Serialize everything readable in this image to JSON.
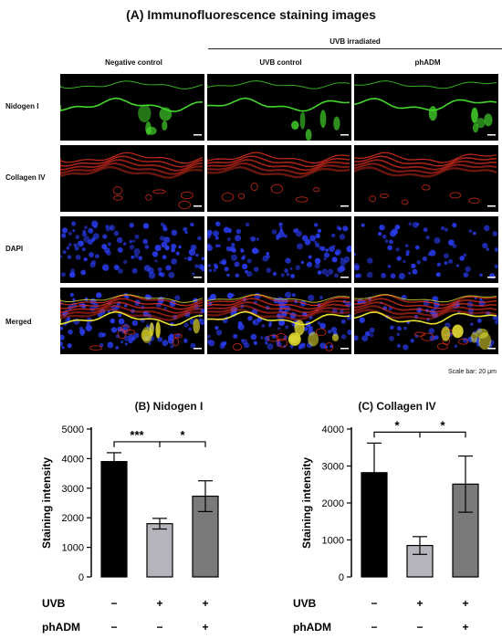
{
  "figure": {
    "title": "(A) Immunofluorescence staining images",
    "group_label": "UVB irradiated",
    "columns": [
      "Negative control",
      "UVB control",
      "phADM"
    ],
    "rows": [
      {
        "label": "Nidogen I",
        "stain": "green"
      },
      {
        "label": "Collagen IV",
        "stain": "red"
      },
      {
        "label": "DAPI",
        "stain": "blue"
      },
      {
        "label": "Merged",
        "stain": "merged"
      }
    ],
    "scale_bar": "Scale bar: 20 μm",
    "colors": {
      "green": "#44d62c",
      "red": "#e83020",
      "blue": "#2a3cf0",
      "yellow": "#e8e030",
      "bar_dark": "#000000",
      "bar_light": "#b4b4bc",
      "bar_mid": "#7a7a7a"
    }
  },
  "chart_data": [
    {
      "type": "bar",
      "title": "(B) Nidogen I",
      "categories": [
        "Negative control",
        "UVB control",
        "phADM"
      ],
      "values": [
        3900,
        1800,
        2730
      ],
      "errors": [
        300,
        180,
        520
      ],
      "ylabel": "Staining intensity",
      "ylim": [
        0,
        5000
      ],
      "yticks": [
        "0",
        "1000",
        "2000",
        "3000",
        "4000",
        "5000"
      ],
      "ytick_values": [
        0,
        1000,
        2000,
        3000,
        4000,
        5000
      ],
      "significance": {
        "left": "***",
        "right": "*"
      },
      "conditions": [
        {
          "label": "UVB",
          "values": [
            "−",
            "+",
            "+"
          ]
        },
        {
          "label": "phADM",
          "values": [
            "−",
            "−",
            "+"
          ]
        }
      ]
    },
    {
      "type": "bar",
      "title": "(C) Collagen IV",
      "categories": [
        "Negative control",
        "UVB control",
        "phADM"
      ],
      "values": [
        2820,
        850,
        2510
      ],
      "errors": [
        800,
        240,
        760
      ],
      "ylabel": "Staining intensity",
      "ylim": [
        0,
        4000
      ],
      "yticks": [
        "0",
        "1000",
        "2000",
        "3000",
        "4000"
      ],
      "ytick_values": [
        0,
        1000,
        2000,
        3000,
        4000
      ],
      "significance": {
        "left": "*",
        "right": "*"
      },
      "conditions": [
        {
          "label": "UVB",
          "values": [
            "−",
            "+",
            "+"
          ]
        },
        {
          "label": "phADM",
          "values": [
            "−",
            "−",
            "+"
          ]
        }
      ]
    }
  ]
}
